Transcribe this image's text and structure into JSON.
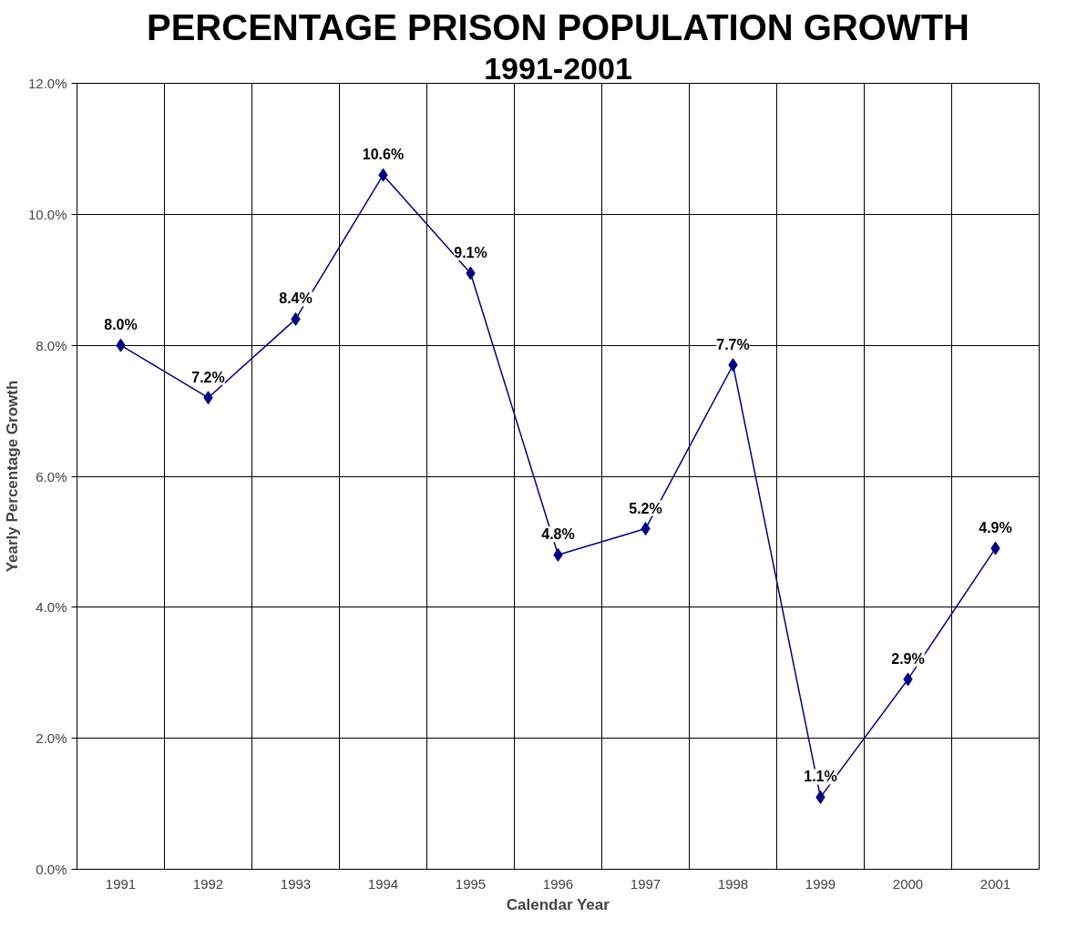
{
  "chart_data": {
    "type": "line",
    "title": "PERCENTAGE PRISON POPULATION GROWTH",
    "subtitle": "1991-2001",
    "xlabel": "Calendar Year",
    "ylabel": "Yearly Percentage Growth",
    "categories": [
      "1991",
      "1992",
      "1993",
      "1994",
      "1995",
      "1996",
      "1997",
      "1998",
      "1999",
      "2000",
      "2001"
    ],
    "series": [
      {
        "color": "#000080",
        "values": [
          8.0,
          7.2,
          8.4,
          10.6,
          9.1,
          4.8,
          5.2,
          7.7,
          1.1,
          2.9,
          4.9
        ],
        "value_labels": [
          "8.0%",
          "7.2%",
          "8.4%",
          "10.6%",
          "9.1%",
          "4.8%",
          "5.2%",
          "7.7%",
          "1.1%",
          "2.9%",
          "4.9%"
        ]
      }
    ],
    "ylim": [
      0,
      12
    ],
    "yticks": [
      {
        "value": 0,
        "label": "0.0%"
      },
      {
        "value": 2,
        "label": "2.0%"
      },
      {
        "value": 4,
        "label": "4.0%"
      },
      {
        "value": 6,
        "label": "6.0%"
      },
      {
        "value": 8,
        "label": "8.0%"
      },
      {
        "value": 10,
        "label": "10.0%"
      },
      {
        "value": 12,
        "label": "12.0%"
      }
    ],
    "grid": true,
    "marker": "diamond",
    "line_style": "solid"
  }
}
